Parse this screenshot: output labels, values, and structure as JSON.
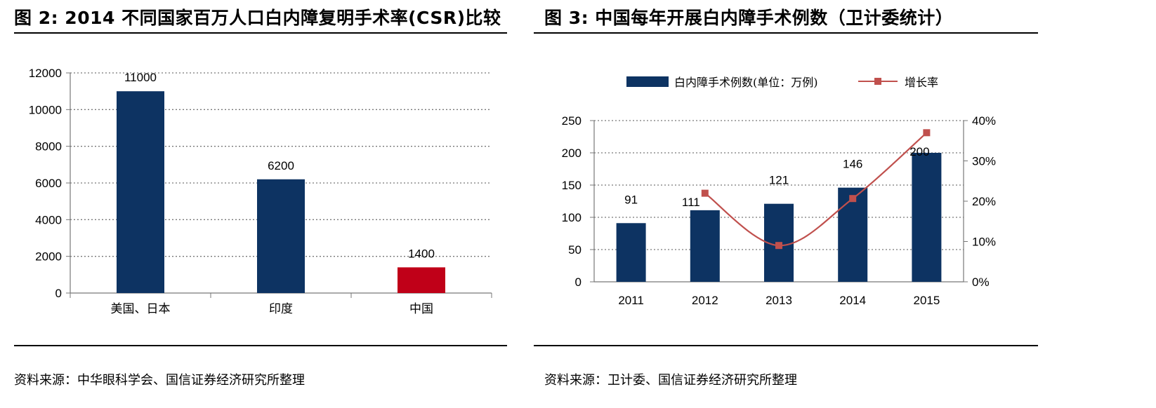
{
  "figures": [
    {
      "title": "图 2:  2014 不同国家百万人口白内障复明手术率(CSR)比较",
      "source": "资料来源：中华眼科学会、国信证券经济研究所整理"
    },
    {
      "title": "图 3:  中国每年开展白内障手术例数（卫计委统计）",
      "source": "资料来源：卫计委、国信证券经济研究所整理"
    }
  ],
  "chart_data": [
    {
      "type": "bar",
      "title": "2014 不同国家百万人口白内障复明手术率(CSR)比较",
      "categories": [
        "美国、日本",
        "印度",
        "中国"
      ],
      "values": [
        11000,
        6200,
        1400
      ],
      "data_labels": [
        "11000",
        "6200",
        "1400"
      ],
      "bar_colors": [
        "#0d3362",
        "#0d3362",
        "#c00018"
      ],
      "ylim": [
        0,
        12000
      ],
      "yticks": [
        0,
        2000,
        4000,
        6000,
        8000,
        10000,
        12000
      ],
      "ytick_labels": [
        "0",
        "2000",
        "4000",
        "6000",
        "8000",
        "10000",
        "12000"
      ],
      "grid": true,
      "xlabel": "",
      "ylabel": ""
    },
    {
      "type": "bar+line",
      "title": "中国每年开展白内障手术例数（卫计委统计）",
      "categories": [
        "2011",
        "2012",
        "2013",
        "2014",
        "2015"
      ],
      "series": [
        {
          "name": "白内障手术例数(单位：万例)",
          "type": "bar",
          "axis": "left",
          "values": [
            91,
            111,
            121,
            146,
            200
          ],
          "labels": [
            "91",
            "111",
            "121",
            "146",
            "200"
          ],
          "color": "#0d3362"
        },
        {
          "name": "增长率",
          "type": "line",
          "axis": "right",
          "values": [
            null,
            0.2198,
            0.0901,
            0.2066,
            0.3699
          ],
          "color": "#c0504d"
        }
      ],
      "ylim_left": [
        0,
        250
      ],
      "yticks_left": [
        0,
        50,
        100,
        150,
        200,
        250
      ],
      "ytick_labels_left": [
        "0",
        "50",
        "100",
        "150",
        "200",
        "250"
      ],
      "ylim_right": [
        0,
        0.4
      ],
      "yticks_right": [
        0,
        0.1,
        0.2,
        0.3,
        0.4
      ],
      "ytick_labels_right": [
        "0%",
        "10%",
        "20%",
        "30%",
        "40%"
      ],
      "legend": "top",
      "grid": true
    }
  ]
}
